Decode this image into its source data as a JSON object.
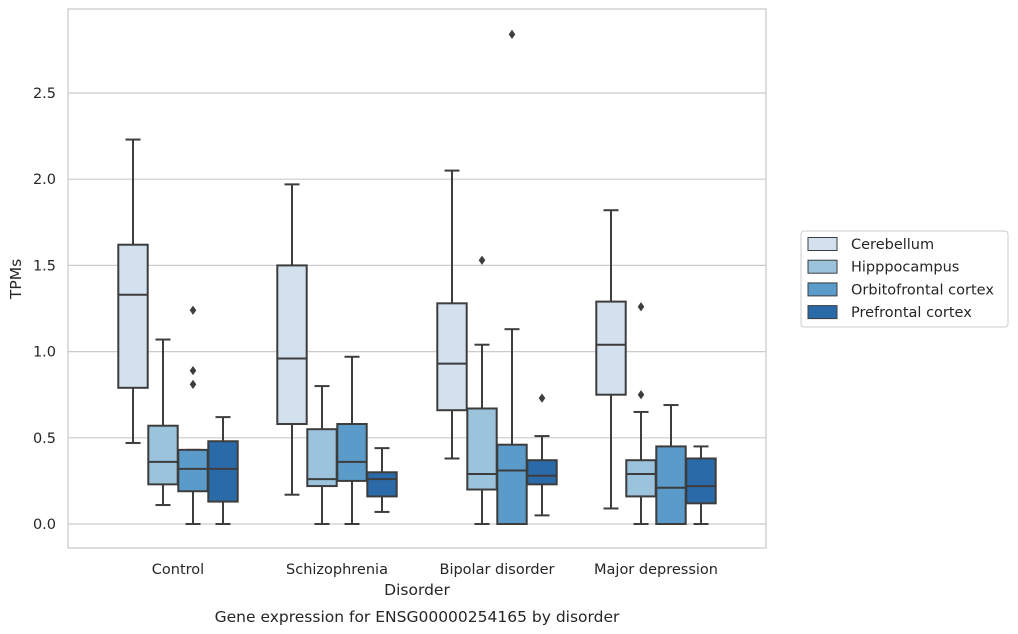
{
  "chart_data": {
    "type": "box",
    "title": "Gene expression for ENSG00000254165 by disorder",
    "xlabel": "Disorder",
    "ylabel": "TPMs",
    "ylim": [
      -0.14,
      2.98
    ],
    "yticks": [
      "0.0",
      "0.5",
      "1.0",
      "1.5",
      "2.0",
      "2.5"
    ],
    "grid": true,
    "legend_position": "right",
    "categories": [
      "Control",
      "Schizophrenia",
      "Bipolar disorder",
      "Major depression"
    ],
    "series": [
      {
        "name": "Cerebellum",
        "color": "#d3e1ef",
        "boxes": [
          {
            "whisker_low": 0.47,
            "q1": 0.79,
            "median": 1.33,
            "q3": 1.62,
            "whisker_high": 2.23,
            "outliers": []
          },
          {
            "whisker_low": 0.17,
            "q1": 0.58,
            "median": 0.96,
            "q3": 1.5,
            "whisker_high": 1.97,
            "outliers": []
          },
          {
            "whisker_low": 0.38,
            "q1": 0.66,
            "median": 0.93,
            "q3": 1.28,
            "whisker_high": 2.05,
            "outliers": []
          },
          {
            "whisker_low": 0.09,
            "q1": 0.75,
            "median": 1.04,
            "q3": 1.29,
            "whisker_high": 1.82,
            "outliers": []
          }
        ]
      },
      {
        "name": "Hipppocampus",
        "color": "#9bc3dc",
        "boxes": [
          {
            "whisker_low": 0.11,
            "q1": 0.23,
            "median": 0.36,
            "q3": 0.57,
            "whisker_high": 1.07,
            "outliers": []
          },
          {
            "whisker_low": 0.0,
            "q1": 0.22,
            "median": 0.26,
            "q3": 0.55,
            "whisker_high": 0.8,
            "outliers": []
          },
          {
            "whisker_low": 0.0,
            "q1": 0.2,
            "median": 0.29,
            "q3": 0.67,
            "whisker_high": 1.04,
            "outliers": [
              1.53
            ]
          },
          {
            "whisker_low": 0.0,
            "q1": 0.16,
            "median": 0.29,
            "q3": 0.37,
            "whisker_high": 0.65,
            "outliers": [
              0.75,
              1.26
            ]
          }
        ]
      },
      {
        "name": "Orbitofrontal cortex",
        "color": "#5a9bc9",
        "boxes": [
          {
            "whisker_low": 0.0,
            "q1": 0.19,
            "median": 0.32,
            "q3": 0.43,
            "whisker_high": 0.43,
            "outliers": [
              0.81,
              0.89,
              1.24
            ]
          },
          {
            "whisker_low": 0.0,
            "q1": 0.25,
            "median": 0.36,
            "q3": 0.58,
            "whisker_high": 0.97,
            "outliers": []
          },
          {
            "whisker_low": 0.0,
            "q1": 0.0,
            "median": 0.31,
            "q3": 0.46,
            "whisker_high": 1.13,
            "outliers": [
              2.84
            ]
          },
          {
            "whisker_low": 0.0,
            "q1": 0.0,
            "median": 0.21,
            "q3": 0.45,
            "whisker_high": 0.69,
            "outliers": []
          }
        ]
      },
      {
        "name": "Prefrontal cortex",
        "color": "#2b6aa8",
        "boxes": [
          {
            "whisker_low": 0.0,
            "q1": 0.13,
            "median": 0.32,
            "q3": 0.48,
            "whisker_high": 0.62,
            "outliers": []
          },
          {
            "whisker_low": 0.07,
            "q1": 0.16,
            "median": 0.26,
            "q3": 0.3,
            "whisker_high": 0.44,
            "outliers": []
          },
          {
            "whisker_low": 0.05,
            "q1": 0.23,
            "median": 0.28,
            "q3": 0.37,
            "whisker_high": 0.51,
            "outliers": [
              0.73
            ]
          },
          {
            "whisker_low": 0.0,
            "q1": 0.12,
            "median": 0.22,
            "q3": 0.38,
            "whisker_high": 0.45,
            "outliers": []
          }
        ]
      }
    ]
  }
}
